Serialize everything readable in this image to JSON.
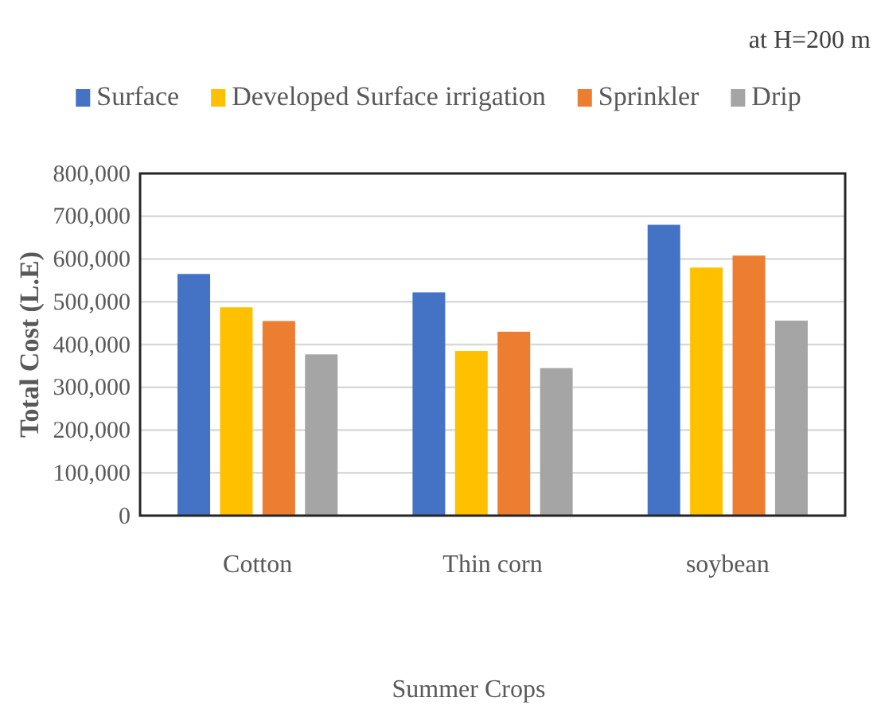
{
  "chart_data": {
    "type": "bar",
    "title": "at H=200 m",
    "xlabel": "Summer Crops",
    "ylabel": "Total Cost (L.E)",
    "categories": [
      "Cotton",
      "Thin corn",
      "soybean"
    ],
    "series": [
      {
        "name": "Surface",
        "color": "#4472c4",
        "values": [
          565000,
          522000,
          680000
        ]
      },
      {
        "name": "Developed Surface irrigation",
        "color": "#ffc000",
        "values": [
          487000,
          385000,
          580000
        ]
      },
      {
        "name": "Sprinkler",
        "color": "#ed7d31",
        "values": [
          455000,
          430000,
          608000
        ]
      },
      {
        "name": "Drip",
        "color": "#a5a5a5",
        "values": [
          377000,
          345000,
          456000
        ]
      }
    ],
    "ylim": [
      0,
      800000
    ],
    "yticks": [
      0,
      {
        "value": 100000,
        "label": "100,000"
      },
      {
        "value": 200000,
        "label": "200,000"
      },
      {
        "value": 300000,
        "label": "300,000"
      },
      {
        "value": 400000,
        "label": "400,000"
      },
      {
        "value": 500000,
        "label": "500,000"
      },
      {
        "value": 600000,
        "label": "600,000"
      },
      {
        "value": 700000,
        "label": "700,000"
      },
      {
        "value": 800000,
        "label": "800,000"
      }
    ],
    "grid": "y",
    "legend": "top"
  }
}
